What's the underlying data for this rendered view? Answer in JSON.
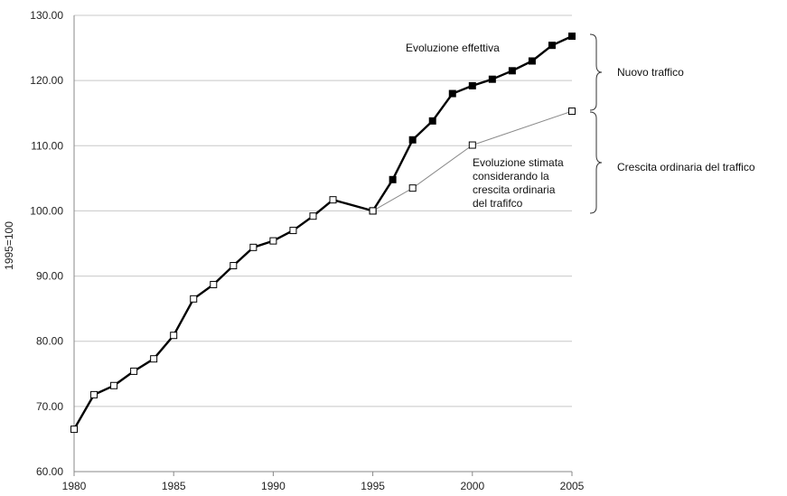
{
  "chart_data": {
    "type": "line",
    "title": "",
    "xlabel": "",
    "ylabel": "1995=100",
    "xlim": [
      1980,
      2005
    ],
    "ylim": [
      60,
      130
    ],
    "x_ticks": [
      "1980",
      "1985",
      "1990",
      "1995",
      "2000",
      "2005"
    ],
    "y_ticks": [
      "60.00",
      "70.00",
      "80.00",
      "90.00",
      "100.00",
      "110.00",
      "120.00",
      "130.00"
    ],
    "grid": true,
    "series": [
      {
        "name": "",
        "style": "hollow",
        "color": "#000000",
        "x": [
          1980,
          1981,
          1982,
          1983,
          1984,
          1985,
          1986,
          1987,
          1988,
          1989,
          1990,
          1991,
          1992,
          1993,
          1995
        ],
        "values": [
          66.5,
          71.8,
          73.2,
          75.4,
          77.3,
          80.9,
          86.5,
          88.7,
          91.6,
          94.4,
          95.4,
          97.0,
          99.2,
          101.7,
          100.0
        ]
      },
      {
        "name": "Evoluzione effettiva",
        "style": "filled",
        "color": "#000000",
        "x": [
          1995,
          1996,
          1997,
          1998,
          1999,
          2000,
          2001,
          2002,
          2003,
          2004,
          2005
        ],
        "values": [
          100.0,
          104.8,
          110.9,
          113.8,
          118.0,
          119.2,
          120.2,
          121.5,
          123.0,
          125.4,
          126.8
        ]
      },
      {
        "name": "Evoluzione stimata considerando la crescita ordinaria del trafifco",
        "style": "hollow-thin",
        "color": "#888888",
        "x": [
          1995,
          1997,
          2000,
          2005
        ],
        "values": [
          100.0,
          103.5,
          110.1,
          115.3
        ]
      }
    ],
    "annotations": {
      "actual_label": "Evoluzione effettiva",
      "estimated_label": [
        "Evoluzione stimata",
        "considerando la",
        "crescita ordinaria",
        "del trafifco"
      ],
      "brace_top_label": "Nuovo traffico",
      "brace_bottom_label": "Crescita ordinaria del traffico"
    }
  }
}
